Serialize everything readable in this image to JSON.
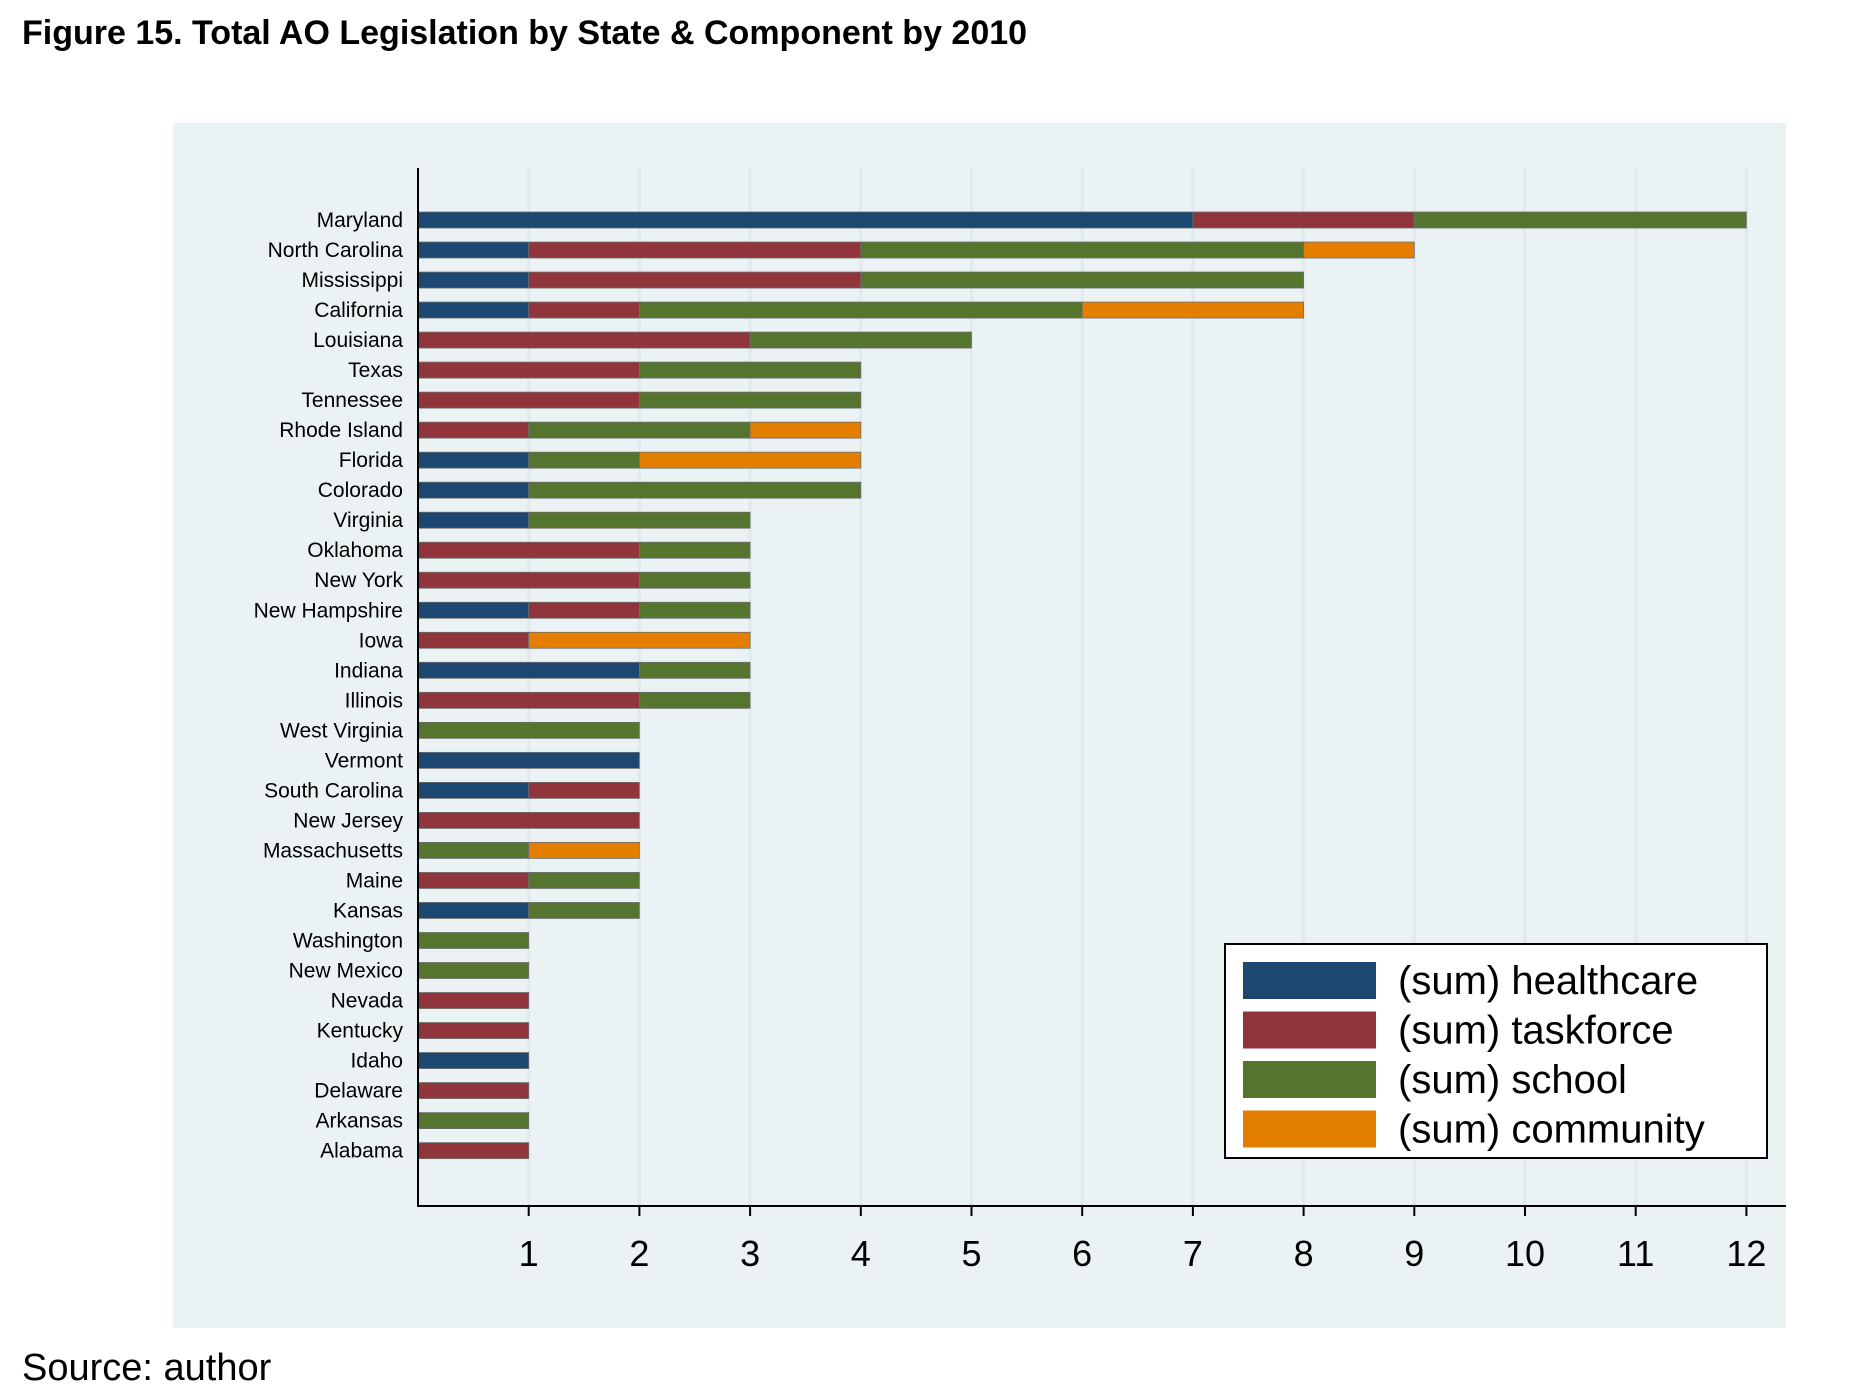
{
  "figure_title": "Figure 15. Total AO Legislation by State & Component by 2010",
  "source_note": "Source: author",
  "colors": {
    "healthcare": "#1c4770",
    "taskforce": "#90353b",
    "school": "#55752f",
    "community": "#e37e00",
    "panel_bg": "#eaf2f3",
    "grid": "#dfe9ee"
  },
  "chart_data": {
    "type": "bar",
    "orientation": "horizontal",
    "stacked": true,
    "title": "",
    "xlabel": "",
    "ylabel": "",
    "xlim": [
      0,
      12.4
    ],
    "x_ticks": [
      "1",
      "2",
      "3",
      "4",
      "5",
      "6",
      "7",
      "8",
      "9",
      "10",
      "11",
      "12"
    ],
    "grid": true,
    "legend_position": "bottom-right",
    "categories": [
      "Maryland",
      "North Carolina",
      "Mississippi",
      "California",
      "Louisiana",
      "Texas",
      "Tennessee",
      "Rhode Island",
      "Florida",
      "Colorado",
      "Virginia",
      "Oklahoma",
      "New York",
      "New Hampshire",
      "Iowa",
      "Indiana",
      "Illinois",
      "West Virginia",
      "Vermont",
      "South Carolina",
      "New Jersey",
      "Massachusetts",
      "Maine",
      "Kansas",
      "Washington",
      "New Mexico",
      "Nevada",
      "Kentucky",
      "Idaho",
      "Delaware",
      "Arkansas",
      "Alabama"
    ],
    "series": [
      {
        "name": "(sum) healthcare",
        "color_key": "healthcare",
        "values": [
          7,
          1,
          1,
          1,
          0,
          0,
          0,
          0,
          1,
          1,
          1,
          0,
          0,
          1,
          0,
          2,
          0,
          0,
          2,
          1,
          0,
          0,
          0,
          1,
          0,
          0,
          0,
          0,
          1,
          0,
          0,
          0
        ]
      },
      {
        "name": "(sum) taskforce",
        "color_key": "taskforce",
        "values": [
          2,
          3,
          3,
          1,
          3,
          2,
          2,
          1,
          0,
          0,
          0,
          2,
          2,
          1,
          1,
          0,
          2,
          0,
          0,
          1,
          2,
          0,
          1,
          0,
          0,
          0,
          1,
          1,
          0,
          1,
          0,
          1
        ]
      },
      {
        "name": "(sum) school",
        "color_key": "school",
        "values": [
          3,
          4,
          4,
          4,
          2,
          2,
          2,
          2,
          1,
          3,
          2,
          1,
          1,
          1,
          0,
          1,
          1,
          2,
          0,
          0,
          0,
          1,
          1,
          1,
          1,
          1,
          0,
          0,
          0,
          0,
          1,
          0
        ]
      },
      {
        "name": "(sum) community",
        "color_key": "community",
        "values": [
          0,
          1,
          0,
          2,
          0,
          0,
          0,
          1,
          2,
          0,
          0,
          0,
          0,
          0,
          2,
          0,
          0,
          0,
          0,
          0,
          0,
          1,
          0,
          0,
          0,
          0,
          0,
          0,
          0,
          0,
          0,
          0
        ]
      }
    ]
  }
}
